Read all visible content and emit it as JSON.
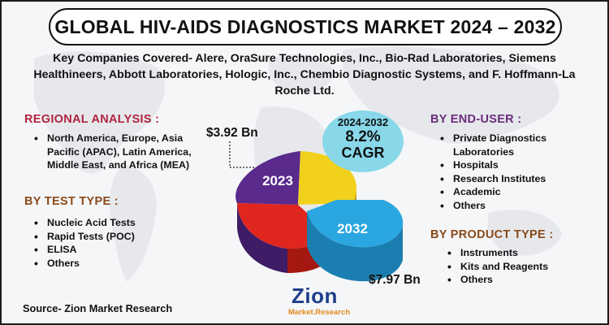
{
  "title": "GLOBAL HIV-AIDS DIAGNOSTICS MARKET 2024 – 2032",
  "subtitle": "Key Companies Covered- Alere, OraSure Technologies, Inc., Bio-Rad Laboratories, Siemens Healthineers, Abbott Laboratories, Hologic, Inc., Chembio Diagnostic Systems, and F. Hoffmann-La Roche Ltd.",
  "regional": {
    "heading": "REGIONAL ANALYSIS :",
    "items": [
      "North America, Europe, Asia Pacific (APAC), Latin America, Middle East, and Africa (MEA)"
    ]
  },
  "test_type": {
    "heading": "BY TEST TYPE :",
    "items": [
      "Nucleic Acid Tests",
      "Rapid Tests (POC)",
      "ELISA",
      "Others"
    ]
  },
  "end_user": {
    "heading": "BY END-USER :",
    "items": [
      "Private Diagnostics Laboratories",
      "Hospitals",
      "Research Institutes",
      "Academic",
      "Others"
    ]
  },
  "product_type": {
    "heading": "BY PRODUCT TYPE :",
    "items": [
      "Instruments",
      "Kits and Reagents",
      "Others"
    ]
  },
  "market": {
    "value_2023": "$3.92 Bn",
    "value_2032": "$7.97 Bn",
    "label_2023": "2023",
    "label_2032": "2032"
  },
  "cagr": {
    "years": "2024-2032",
    "rate": "8.2%",
    "label": "CAGR"
  },
  "source": "Source- Zion Market Research",
  "logo": {
    "name": "Zion",
    "sub": "Market.Research"
  },
  "colors": {
    "regional_heading": "#b1243f",
    "test_heading": "#8a4a1a",
    "enduser_heading": "#6a2d7a",
    "product_heading": "#8a4a1a",
    "pie_purple": "#5a2a8c",
    "pie_yellow": "#f2d11c",
    "pie_red": "#e0261e",
    "pie_blue": "#2aa6e0",
    "cagr_bubble": "#88d8ea",
    "logo_blue": "#1e3f8a",
    "logo_orange": "#e08a1e"
  }
}
